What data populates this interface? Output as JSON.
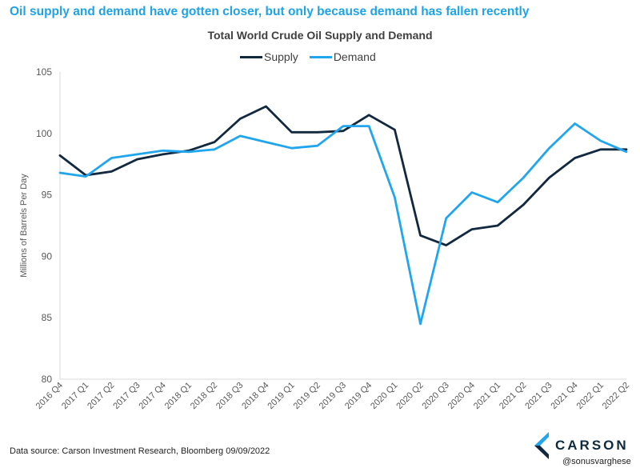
{
  "headline": "Oil supply and demand have gotten closer, but only because demand has fallen recently",
  "footer": {
    "source": "Data source: Carson Investment Research, Bloomberg   09/09/2022",
    "brand": "CARSON",
    "handle": "@sonusvarghese"
  },
  "colors": {
    "supply": "#12283f",
    "demand": "#21a6ee",
    "headline": "#1ea3e6"
  },
  "chart_data": {
    "type": "line",
    "title": "Total World Crude Oil Supply and Demand",
    "ylabel": "Millions of Barrels Per Day",
    "xlabel": "",
    "ylim": [
      80,
      105
    ],
    "yticks": [
      80,
      85,
      90,
      95,
      100,
      105
    ],
    "grid": false,
    "legend_position": "top-center",
    "categories": [
      "2016 Q4",
      "2017 Q1",
      "2017 Q2",
      "2017 Q3",
      "2017 Q4",
      "2018 Q1",
      "2018 Q2",
      "2018 Q3",
      "2018 Q4",
      "2019 Q1",
      "2019 Q2",
      "2019 Q3",
      "2019 Q4",
      "2020 Q1",
      "2020 Q2",
      "2020 Q3",
      "2020 Q4",
      "2021 Q1",
      "2021 Q2",
      "2021 Q3",
      "2021 Q4",
      "2022 Q1",
      "2022 Q2"
    ],
    "series": [
      {
        "name": "Supply",
        "color": "#12283f",
        "values": [
          98.2,
          96.6,
          96.9,
          97.9,
          98.3,
          98.6,
          99.3,
          101.2,
          102.2,
          100.1,
          100.1,
          100.2,
          101.5,
          100.3,
          91.7,
          90.9,
          92.2,
          92.5,
          94.2,
          96.4,
          98.0,
          98.7,
          98.7
        ]
      },
      {
        "name": "Demand",
        "color": "#21a6ee",
        "values": [
          96.8,
          96.5,
          98.0,
          98.3,
          98.6,
          98.5,
          98.7,
          99.8,
          99.3,
          98.8,
          99.0,
          100.6,
          100.6,
          94.8,
          84.5,
          93.1,
          95.2,
          94.4,
          96.4,
          98.8,
          100.8,
          99.4,
          98.5
        ]
      }
    ]
  }
}
